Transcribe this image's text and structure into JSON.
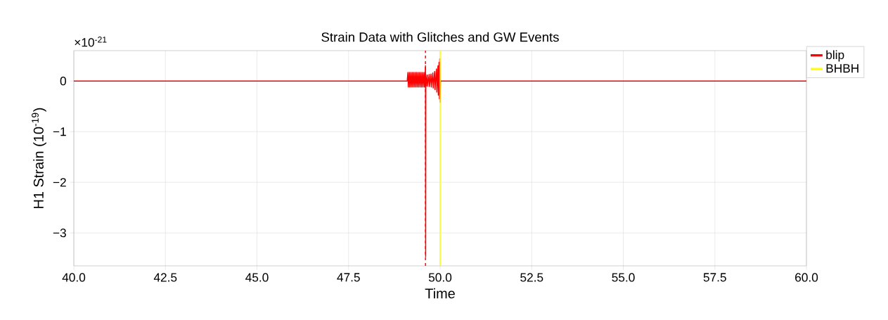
{
  "chart_data": {
    "type": "line",
    "title": "Strain Data with Glitches and GW Events",
    "xlabel": "Time",
    "ylabel": "H1 Strain (10$^{-19}$)",
    "annotations": [
      "×10$^{-21}$"
    ],
    "series": [
      {
        "color": "#ff0000",
        "x": [
          40,
          49.1,
          49.12,
          49.13,
          49.16,
          49.17,
          49.2,
          49.21,
          49.24,
          49.25,
          49.28,
          49.29,
          49.32,
          49.33,
          49.36,
          49.37,
          49.4,
          49.41,
          49.44,
          49.45,
          49.48,
          49.49,
          49.52,
          49.53,
          49.56,
          49.57,
          49.59,
          49.6,
          49.605,
          49.61,
          49.62,
          49.65,
          49.66,
          49.7,
          49.71,
          49.75,
          49.76,
          49.8,
          49.81,
          49.85,
          49.86,
          49.9,
          49.91,
          49.94,
          49.95,
          49.97,
          49.98,
          49.99,
          50.0,
          50.01,
          60
        ],
        "values": [
          0,
          0,
          0.17,
          -0.12,
          0.17,
          -0.12,
          0.17,
          -0.12,
          0.17,
          -0.12,
          0.17,
          -0.12,
          0.17,
          -0.12,
          0.17,
          -0.12,
          0.17,
          -0.12,
          0.17,
          -0.12,
          0.17,
          -0.12,
          0.17,
          -0.12,
          0.17,
          -0.12,
          0.12,
          0.3,
          -3.47,
          0.12,
          -0.1,
          0.12,
          -0.1,
          0.13,
          -0.11,
          0.14,
          -0.12,
          0.16,
          -0.14,
          0.19,
          -0.17,
          0.24,
          -0.22,
          0.3,
          -0.28,
          0.37,
          -0.35,
          0.44,
          -0.42,
          0,
          0
        ]
      },
      {
        "name": "blip",
        "color": "#ff0000",
        "line_style": "dashed",
        "x": [
          49.6,
          49.6
        ],
        "values": [
          -3.65,
          0.6
        ]
      },
      {
        "name": "BHBH",
        "color": "#ffff00",
        "x": [
          50.0,
          50.0
        ],
        "values": [
          -3.65,
          0.6
        ]
      }
    ],
    "xlim": [
      40,
      60
    ],
    "ylim": [
      -3.65,
      0.6
    ],
    "xticks": [
      {
        "value": 40,
        "label": "40.0"
      },
      {
        "value": 42.5,
        "label": "42.5"
      },
      {
        "value": 45,
        "label": "45.0"
      },
      {
        "value": 47.5,
        "label": "47.5"
      },
      {
        "value": 50,
        "label": "50.0"
      },
      {
        "value": 52.5,
        "label": "52.5"
      },
      {
        "value": 55,
        "label": "55.0"
      },
      {
        "value": 57.5,
        "label": "57.5"
      },
      {
        "value": 60,
        "label": "60.0"
      }
    ],
    "yticks": [
      {
        "value": 0,
        "label": "0"
      },
      {
        "value": -1,
        "label": "−1"
      },
      {
        "value": -2,
        "label": "−2"
      },
      {
        "value": -3,
        "label": "−3"
      }
    ],
    "grid": true,
    "legend": "top right",
    "marker": "none",
    "line_style": "solid"
  }
}
